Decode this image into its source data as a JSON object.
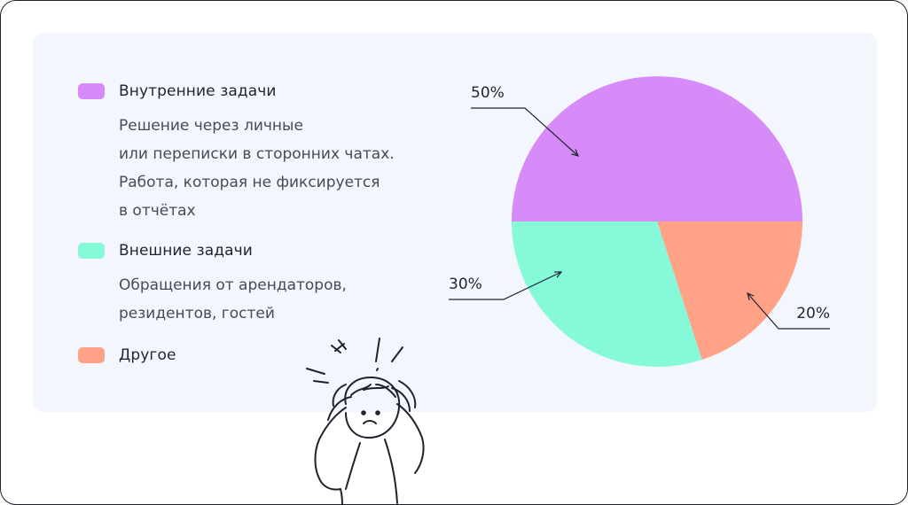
{
  "legend": [
    {
      "label": "Внутренние задачи",
      "color": "#d68bf9",
      "description": [
        "Решение через личные",
        "или переписки в сторонних чатах.",
        "Работа, которая не фиксируется",
        "в отчётах"
      ]
    },
    {
      "label": "Внешние задачи",
      "color": "#86fad8",
      "description": [
        "Обращения от арендаторов,",
        "резидентов, гостей"
      ]
    },
    {
      "label": "Другое",
      "color": "#ffa287",
      "description": []
    }
  ],
  "chart_data": {
    "type": "pie",
    "title": "",
    "slices": [
      {
        "label": "Внутренние задачи",
        "value": 50,
        "display": "50%",
        "color": "#d68bf9"
      },
      {
        "label": "Другое",
        "value": 20,
        "display": "20%",
        "color": "#ffa287"
      },
      {
        "label": "Внешние задачи",
        "value": 30,
        "display": "30%",
        "color": "#86fad8"
      }
    ],
    "start_angle": "left-horizontal",
    "direction": "clockwise",
    "legend_position": "left"
  },
  "illustration": {
    "icon": "stressed-person-icon"
  }
}
